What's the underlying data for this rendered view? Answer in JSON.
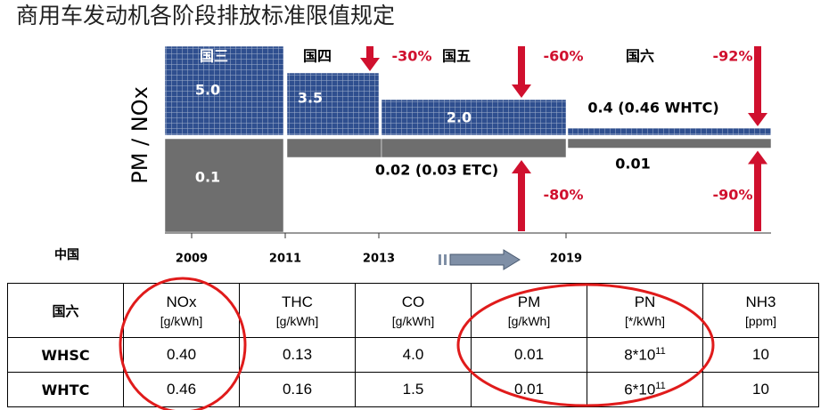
{
  "title": "商用车发动机各阶段排放标准限值规定",
  "chart_data": {
    "type": "bar",
    "y_label": "PM / NOx",
    "x_label": "中国",
    "categories": [
      "国三",
      "国四",
      "国五",
      "国六"
    ],
    "xticks": [
      2009,
      2011,
      2013,
      2019
    ],
    "series": [
      {
        "color": "#2f4f8f",
        "values": [
          5.0,
          3.5,
          2.0,
          0.4
        ],
        "value_labels": [
          "5.0",
          "3.5",
          "2.0",
          "0.4 (0.46 WHTC)"
        ],
        "change_labels": [
          null,
          "-30%",
          "-60%",
          "-92%"
        ]
      },
      {
        "color": "#6e6e6e",
        "values": [
          0.1,
          0.02,
          0.02,
          0.01
        ],
        "value_labels": [
          "0.1",
          null,
          "0.02 (0.03 ETC)",
          "0.01"
        ],
        "change_labels": [
          null,
          null,
          "-80%",
          "-90%"
        ]
      }
    ]
  },
  "table": {
    "header": [
      {
        "name": "国六"
      },
      {
        "name": "NOx",
        "unit": "[g/kWh]"
      },
      {
        "name": "THC",
        "unit": "[g/kWh]"
      },
      {
        "name": "CO",
        "unit": "[g/kWh]"
      },
      {
        "name": "PM",
        "unit": "[g/kWh]"
      },
      {
        "name": "PN",
        "unit": "[*/kWh]"
      },
      {
        "name": "NH3",
        "unit": "[ppm]"
      }
    ],
    "rows": [
      [
        "WHSC",
        "0.40",
        "0.13",
        "4.0",
        "0.01",
        {
          "base": "8*10",
          "exp": "11"
        },
        "10"
      ],
      [
        "WHTC",
        "0.46",
        "0.16",
        "1.5",
        "0.01",
        {
          "base": "6*10",
          "exp": "11"
        },
        "10"
      ]
    ]
  }
}
